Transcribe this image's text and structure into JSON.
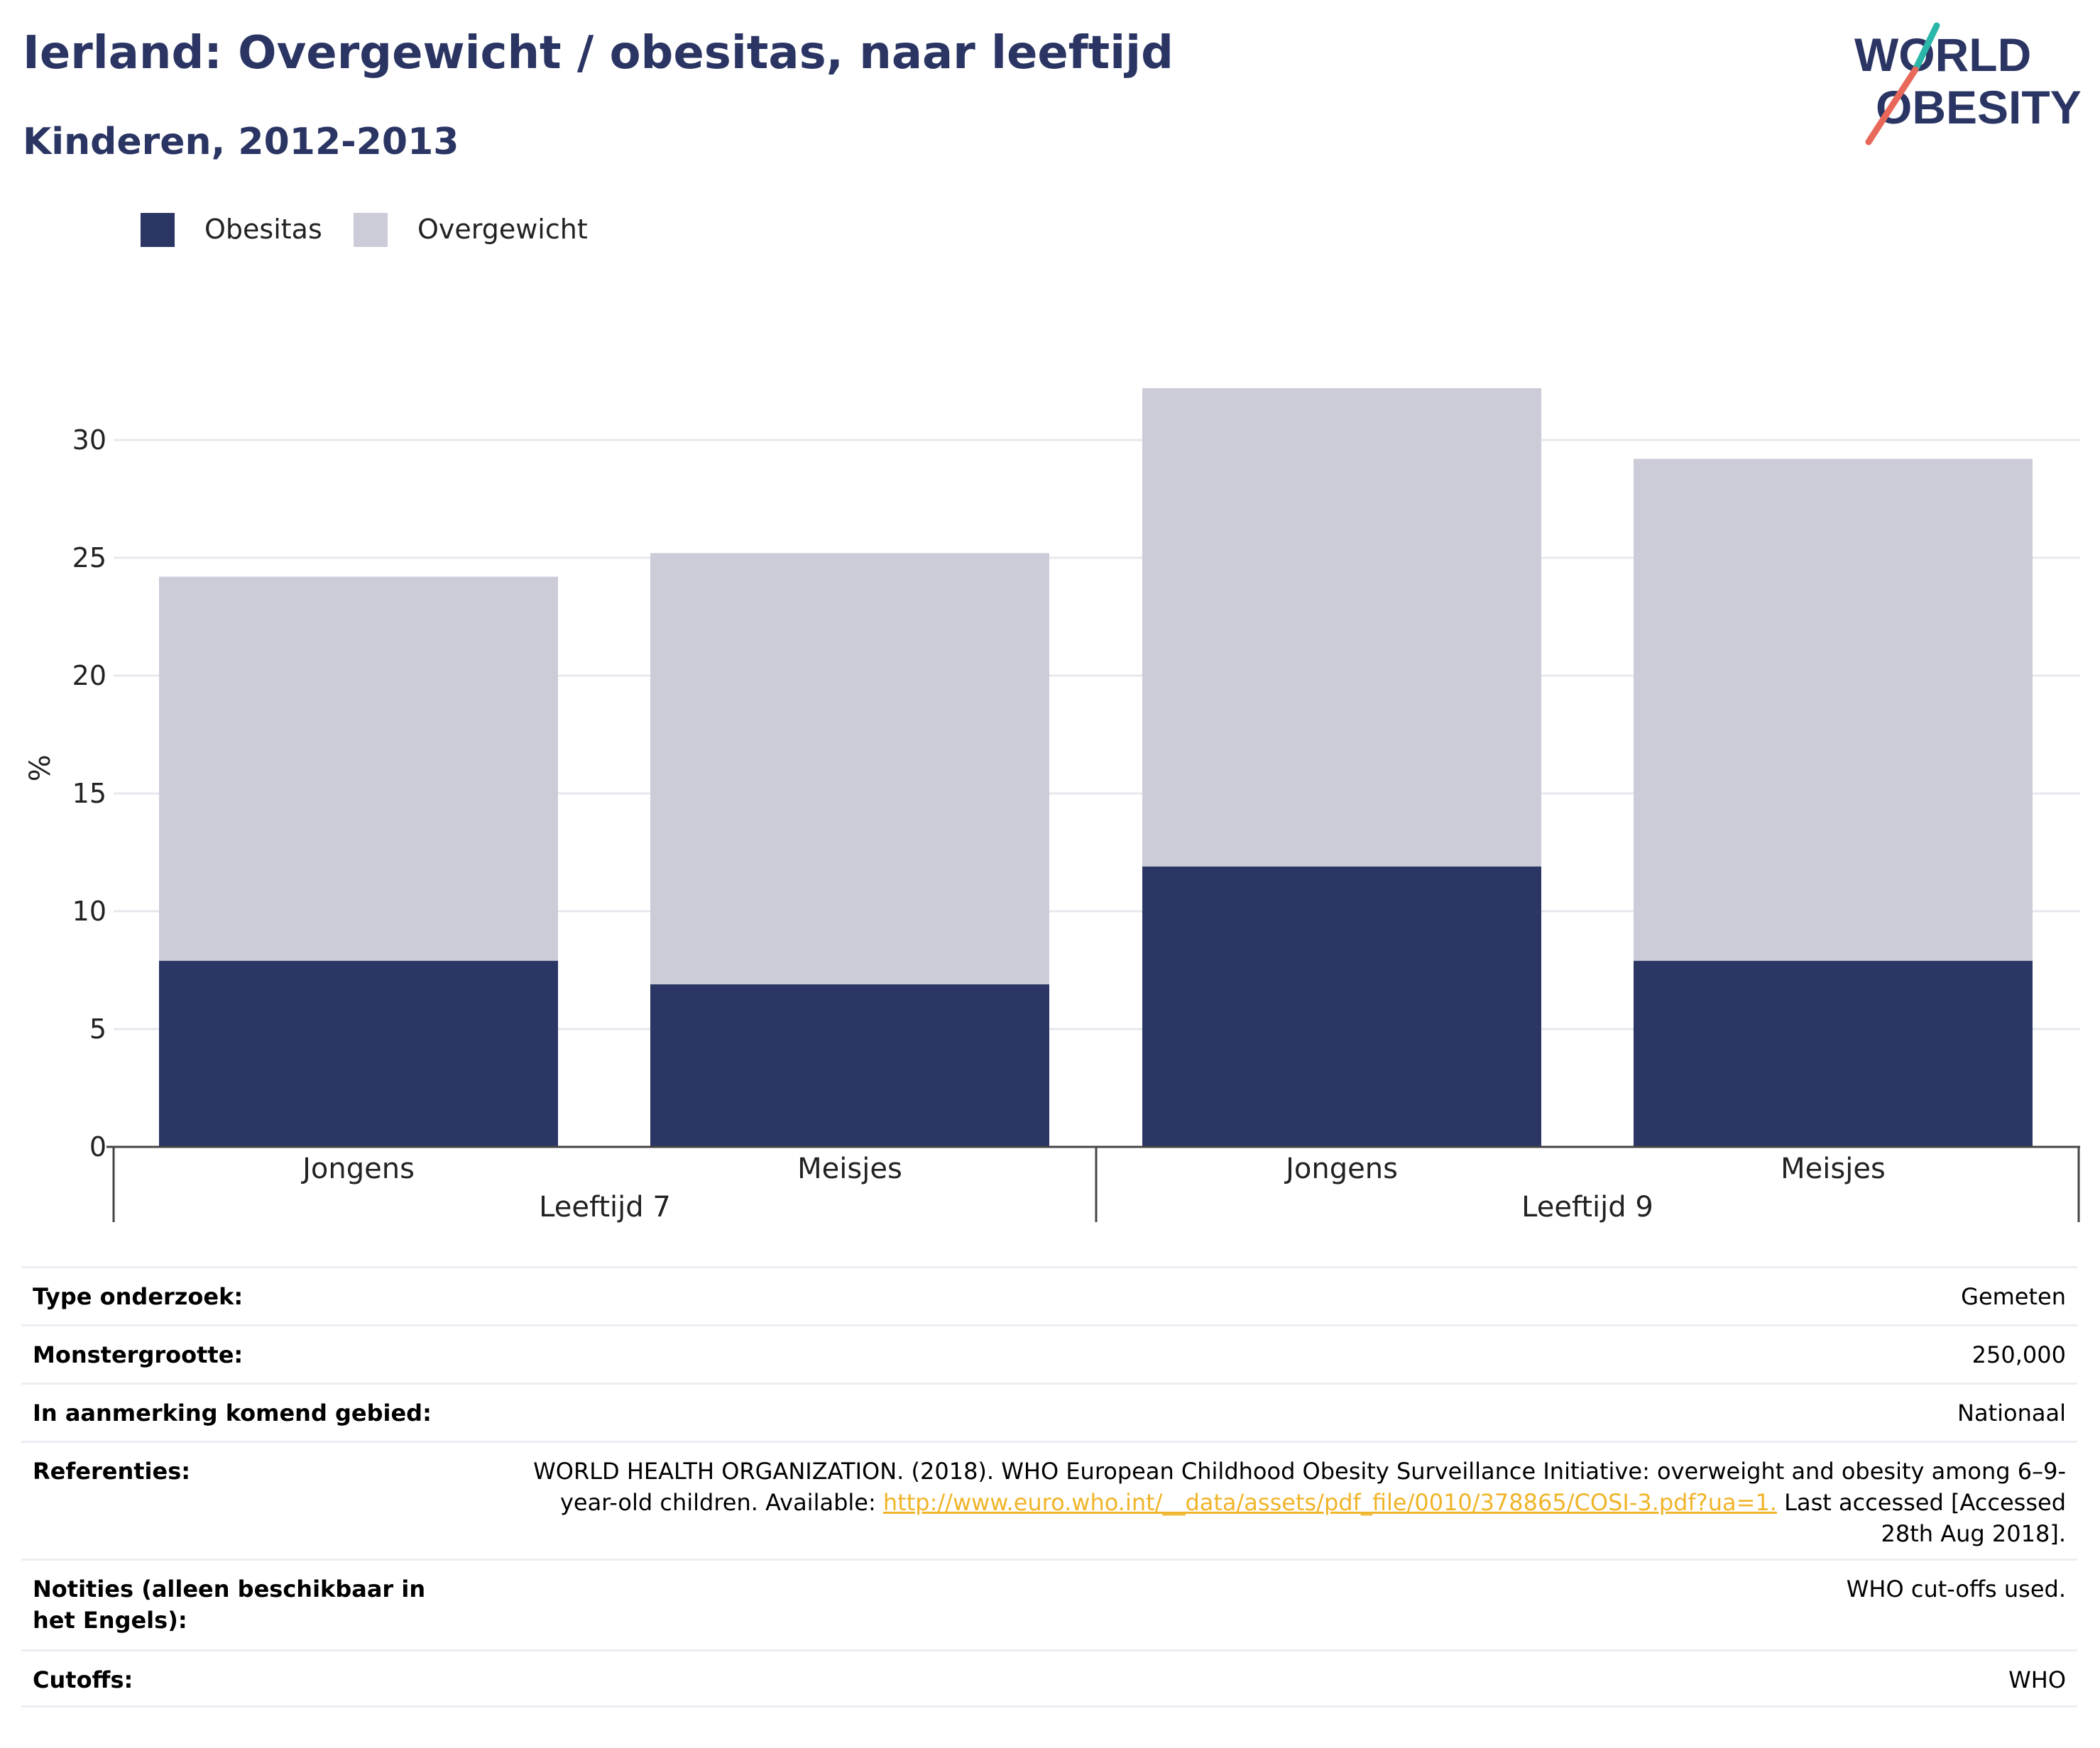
{
  "header": {
    "title": "Ierland: Overgewicht / obesitas, naar leeftijd",
    "subtitle": "Kinderen, 2012-2013"
  },
  "logo": {
    "line1": "WORLD",
    "line2": "OBESITY"
  },
  "colors": {
    "obesitas": "#2b3664",
    "overgewicht": "#cbccd8",
    "title": "#2b3563",
    "link": "#f0b429",
    "logo_teal": "#2ab7a9",
    "logo_coral": "#e8685a"
  },
  "chart_data": {
    "type": "bar",
    "stacked": true,
    "ylabel": "%",
    "ylim": [
      0,
      33
    ],
    "yticks": [
      0,
      5,
      10,
      15,
      20,
      25,
      30
    ],
    "grid": true,
    "legend_position": "top-left",
    "groups": [
      {
        "label": "Leeftijd 7",
        "categories": [
          "Jongens",
          "Meisjes"
        ]
      },
      {
        "label": "Leeftijd 9",
        "categories": [
          "Jongens",
          "Meisjes"
        ]
      }
    ],
    "series": [
      {
        "name": "Obesitas",
        "values": [
          7.9,
          6.9,
          11.9,
          7.9
        ]
      },
      {
        "name": "Overgewicht",
        "values": [
          16.3,
          18.3,
          20.3,
          21.3
        ]
      }
    ]
  },
  "info": {
    "rows": [
      {
        "key": "Type onderzoek:",
        "value": "Gemeten"
      },
      {
        "key": "Monstergrootte:",
        "value": "250,000"
      },
      {
        "key": "In aanmerking komend gebied:",
        "value": "Nationaal"
      },
      {
        "key": "Referenties:",
        "value_prefix": "WORLD HEALTH ORGANIZATION. (2018). WHO European Childhood Obesity Surveillance Initiative: overweight and obesity among 6–9-year-old children. Available: ",
        "link": "http://www.euro.who.int/__data/assets/pdf_file/0010/378865/COSI-3.pdf?ua=1.",
        "value_suffix": " Last accessed [Accessed 28th Aug 2018]."
      },
      {
        "key": "Notities (alleen beschikbaar in het Engels):",
        "value": "WHO cut-offs used."
      },
      {
        "key": "Cutoffs:",
        "value": "WHO"
      }
    ]
  }
}
